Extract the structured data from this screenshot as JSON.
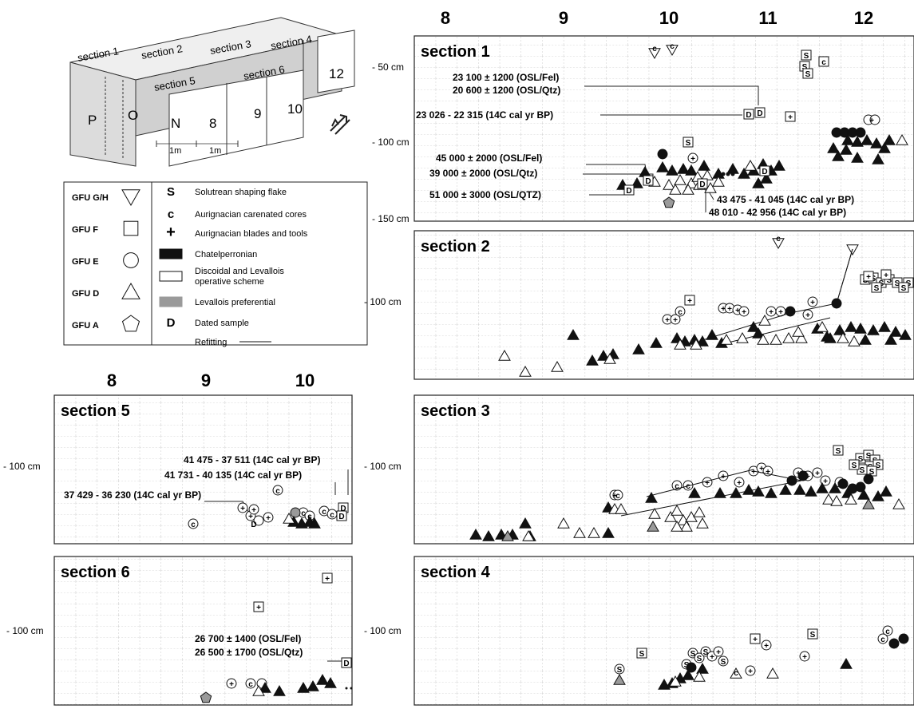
{
  "grid_labels": {
    "top": [
      "8",
      "9",
      "10",
      "11",
      "12"
    ],
    "left": [
      "8",
      "9",
      "10"
    ]
  },
  "block": {
    "sections": [
      "section 1",
      "section 2",
      "section 3",
      "section 4",
      "section 5",
      "section 6"
    ],
    "rows": [
      "P",
      "O",
      "N"
    ],
    "cols": [
      "8",
      "9",
      "10",
      "12"
    ],
    "scale": [
      "1m",
      "1m"
    ]
  },
  "legend": {
    "gfu": [
      {
        "label": "GFU G/H",
        "shape": "triangle-down"
      },
      {
        "label": "GFU F",
        "shape": "square"
      },
      {
        "label": "GFU E",
        "shape": "circle"
      },
      {
        "label": "GFU D",
        "shape": "triangle-up"
      },
      {
        "label": "GFU A",
        "shape": "pentagon"
      }
    ],
    "types": [
      {
        "symbol": "S",
        "label": "Solutrean shaping flake"
      },
      {
        "symbol": "c",
        "label": "Aurignacian carenated cores"
      },
      {
        "symbol": "+",
        "label": "Aurignacian blades and tools"
      },
      {
        "symbol": "fill-black",
        "label": "Chatelperronian"
      },
      {
        "symbol": "fill-white",
        "label": "Discoidal and Levallois operative scheme"
      },
      {
        "symbol": "fill-grey",
        "label": "Levallois preferential"
      },
      {
        "symbol": "D",
        "label": "Dated sample"
      },
      {
        "symbol": "line",
        "label": "Refitting"
      }
    ]
  },
  "panels": {
    "s1": {
      "title": "section 1",
      "depths": [
        "- 50 cm",
        "- 100 cm",
        "- 150 cm"
      ],
      "dates": [
        "23 100 ± 1200 (OSL/Fel)",
        "20 600 ± 1200 (OSL/Qtz)",
        "23 026 - 22 315 (14C cal yr BP)",
        "45 000 ± 2000 (OSL/Fel)",
        "39 000 ± 2000 (OSL/Qtz)",
        "51 000 ± 3000 (OSL/QTZ)",
        "43 475 - 41 045 (14C cal yr BP)",
        "48 010 - 42 956 (14C cal yr BP)"
      ]
    },
    "s2": {
      "title": "section 2",
      "depths": [
        "- 100 cm"
      ]
    },
    "s3": {
      "title": "section 3",
      "depths": [
        "- 100 cm"
      ]
    },
    "s4": {
      "title": "section 4",
      "depths": [
        "- 100 cm"
      ]
    },
    "s5": {
      "title": "section 5",
      "depths": [
        "- 100 cm"
      ],
      "dates": [
        "41 475 - 37 511 (14C cal yr BP)",
        "41 731 - 40 135 (14C cal yr BP)",
        "37 429 - 36 230 (14C cal yr BP)"
      ]
    },
    "s6": {
      "title": "section 6",
      "depths": [
        "- 100 cm"
      ],
      "dates": [
        "26 700 ± 1400 (OSL/Fel)",
        "26 500 ± 1700 (OSL/Qtz)"
      ]
    }
  },
  "colors": {
    "black": "#111111",
    "grey": "#9a9a9a",
    "white": "#ffffff",
    "block": "#d6d6d6"
  }
}
